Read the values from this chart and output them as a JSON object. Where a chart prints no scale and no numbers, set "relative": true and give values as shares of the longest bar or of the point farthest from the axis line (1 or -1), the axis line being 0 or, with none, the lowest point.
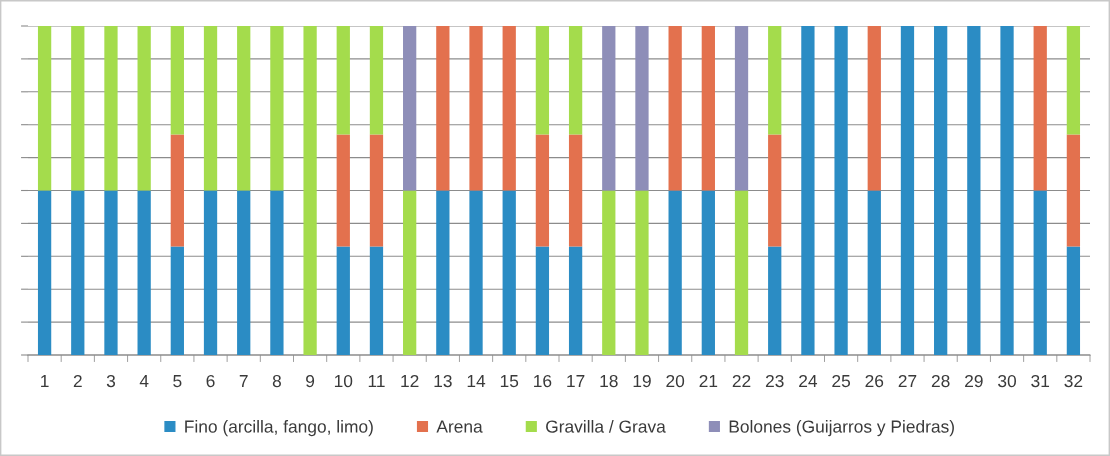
{
  "chart_data": {
    "type": "bar",
    "stacked": true,
    "relative": true,
    "grid": "y",
    "legend": "bottom",
    "tick_labels": "x",
    "categories": [
      "1",
      "2",
      "3",
      "4",
      "5",
      "6",
      "7",
      "8",
      "9",
      "10",
      "11",
      "12",
      "13",
      "14",
      "15",
      "16",
      "17",
      "18",
      "19",
      "20",
      "21",
      "22",
      "23",
      "24",
      "25",
      "26",
      "27",
      "28",
      "29",
      "30",
      "31",
      "32"
    ],
    "series": [
      {
        "name": "Fino (arcilla, fango, limo)",
        "color": "#2b8cc4",
        "values": [
          0.5,
          0.5,
          0.5,
          0.5,
          0.33,
          0.5,
          0.5,
          0.5,
          null,
          0.33,
          0.33,
          null,
          0.5,
          0.5,
          0.5,
          0.33,
          0.33,
          null,
          null,
          0.5,
          0.5,
          null,
          0.33,
          1,
          1,
          0.5,
          1,
          1,
          1,
          1,
          0.5,
          0.33
        ]
      },
      {
        "name": "Arena",
        "color": "#e3714e",
        "values": [
          null,
          null,
          null,
          null,
          0.34,
          null,
          null,
          null,
          null,
          0.34,
          0.34,
          null,
          0.5,
          0.5,
          0.5,
          0.34,
          0.34,
          null,
          null,
          0.5,
          0.5,
          null,
          0.34,
          null,
          null,
          0.5,
          null,
          null,
          null,
          null,
          0.5,
          0.34
        ]
      },
      {
        "name": "Gravilla / Grava",
        "color": "#a4dc4c",
        "values": [
          0.5,
          0.5,
          0.5,
          0.5,
          0.33,
          0.5,
          0.5,
          0.5,
          1,
          0.33,
          0.33,
          0.5,
          null,
          null,
          null,
          0.33,
          0.33,
          0.5,
          0.5,
          null,
          null,
          0.5,
          0.33,
          null,
          null,
          null,
          null,
          null,
          null,
          null,
          null,
          0.33
        ]
      },
      {
        "name": "Bolones (Guijarros y Piedras)",
        "color": "#8e8eb8",
        "values": [
          null,
          null,
          null,
          null,
          null,
          null,
          null,
          null,
          null,
          null,
          null,
          0.5,
          null,
          null,
          null,
          null,
          null,
          0.5,
          0.5,
          null,
          null,
          0.5,
          null,
          null,
          null,
          null,
          null,
          null,
          null,
          null,
          null,
          null
        ]
      }
    ]
  }
}
